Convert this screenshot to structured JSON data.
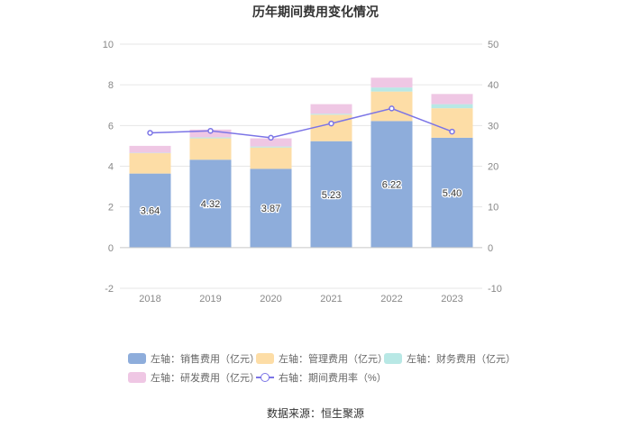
{
  "title": "历年期间费用变化情况",
  "source": "数据来源：恒生聚源",
  "chart_data": {
    "type": "bar",
    "stacked": true,
    "categories": [
      "2018",
      "2019",
      "2020",
      "2021",
      "2022",
      "2023"
    ],
    "left_axis": {
      "min": -2,
      "max": 10,
      "ticks": [
        "-2",
        "0",
        "2",
        "4",
        "6",
        "8",
        "10"
      ]
    },
    "right_axis": {
      "min": -10,
      "max": 50,
      "ticks": [
        "-10",
        "0",
        "10",
        "20",
        "30",
        "40",
        "50"
      ]
    },
    "series": [
      {
        "name": "销售费用（亿元）",
        "axis": "左轴",
        "color": "#8eaddb",
        "values": [
          3.64,
          4.32,
          3.87,
          5.23,
          6.22,
          5.4
        ],
        "labels": [
          "3.64",
          "4.32",
          "3.87",
          "5.23",
          "6.22",
          "5.40"
        ]
      },
      {
        "name": "管理费用（亿元）",
        "axis": "左轴",
        "color": "#fddda6",
        "values": [
          1.0,
          1.05,
          1.05,
          1.3,
          1.45,
          1.45
        ]
      },
      {
        "name": "财务费用（亿元）",
        "axis": "左轴",
        "color": "#b8e8e5",
        "values": [
          0.02,
          0.05,
          0.05,
          0.05,
          0.2,
          0.2
        ]
      },
      {
        "name": "研发费用（亿元）",
        "axis": "左轴",
        "color": "#efc7e4",
        "values": [
          0.34,
          0.38,
          0.4,
          0.47,
          0.48,
          0.5
        ]
      }
    ],
    "line": {
      "name": "期间费用率（%）",
      "axis": "右轴",
      "color": "#7b74e6",
      "values": [
        28.2,
        28.7,
        27.0,
        30.5,
        34.2,
        28.5
      ]
    },
    "legend": {
      "sep": "：",
      "items": [
        {
          "axis": "左轴",
          "name": "销售费用（亿元）",
          "color": "#8eaddb"
        },
        {
          "axis": "左轴",
          "name": "管理费用（亿元）",
          "color": "#fddda6"
        },
        {
          "axis": "左轴",
          "name": "财务费用（亿元）",
          "color": "#b8e8e5"
        },
        {
          "axis": "左轴",
          "name": "研发费用（亿元）",
          "color": "#efc7e4"
        },
        {
          "axis": "右轴",
          "name": "期间费用率（%）",
          "color": "#7b74e6"
        }
      ]
    }
  }
}
